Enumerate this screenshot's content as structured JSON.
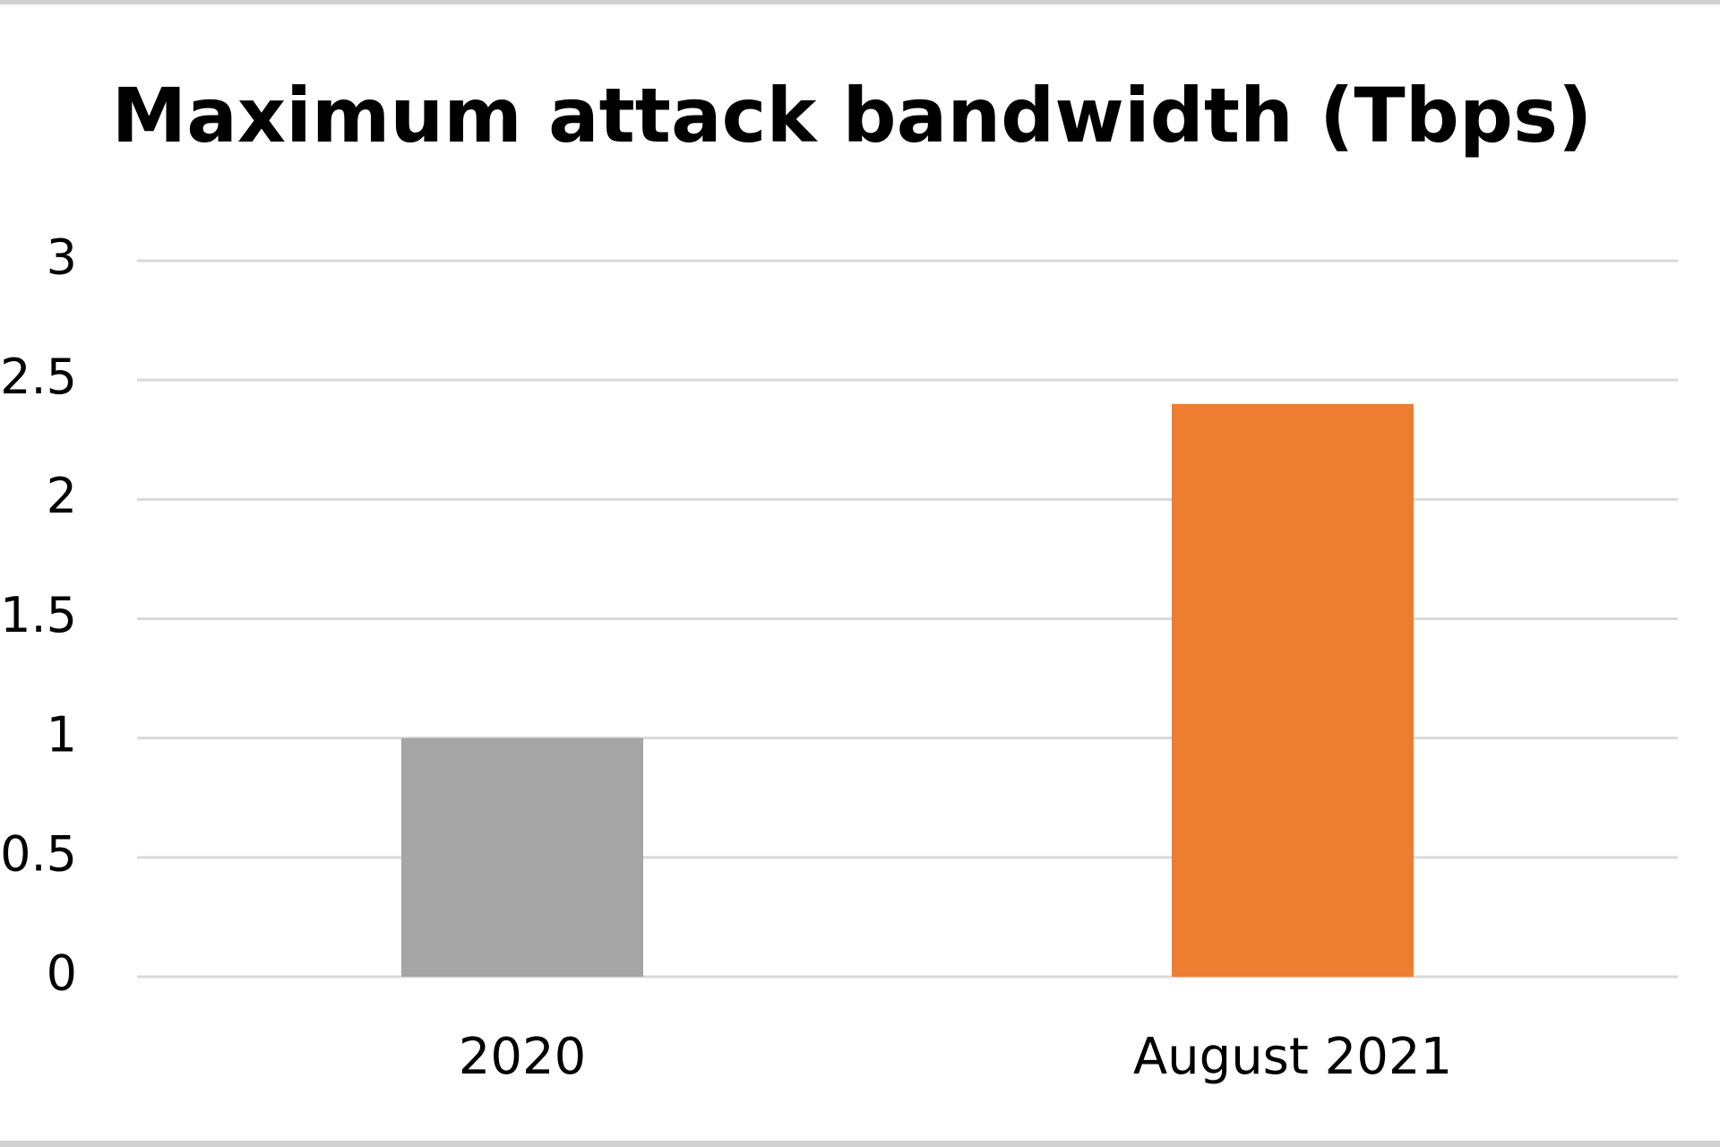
{
  "chart_data": {
    "type": "bar",
    "title": "Maximum attack bandwidth (Tbps)",
    "categories": [
      "2020",
      "August 2021"
    ],
    "values": [
      1,
      2.4
    ],
    "colors": [
      "#a5a5a5",
      "#ed7d31"
    ],
    "ylim": [
      0,
      3
    ],
    "yticks": [
      0,
      0.5,
      1,
      1.5,
      2,
      2.5,
      3
    ],
    "grid": true
  }
}
